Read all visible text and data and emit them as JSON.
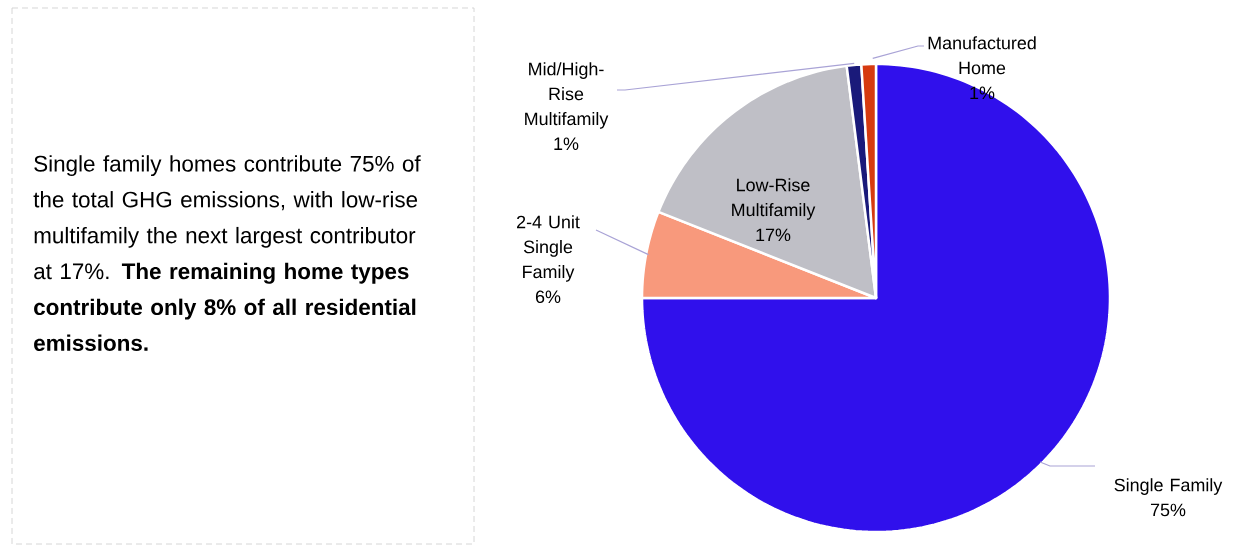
{
  "chart_data": {
    "type": "pie",
    "categories": [
      "Single Family",
      "2-4 Unit Single Family",
      "Low-Rise Multifamily",
      "Mid/High-Rise Multifamily",
      "Manufactured Home"
    ],
    "values": [
      75,
      6,
      17,
      1,
      1
    ],
    "value_labels": [
      "75%",
      "6%",
      "17%",
      "1%",
      "1%"
    ],
    "colors": [
      "#3010ec",
      "#f8997c",
      "#bfbfc6",
      "#1a1a7a",
      "#d63a10"
    ],
    "annotations": [
      "Single family homes contribute 75% of the total GHG emissions, with low-rise multifamily the next largest contributor at 17%. **The remaining home types contribute only 8% of all residential emissions.**"
    ]
  }
}
